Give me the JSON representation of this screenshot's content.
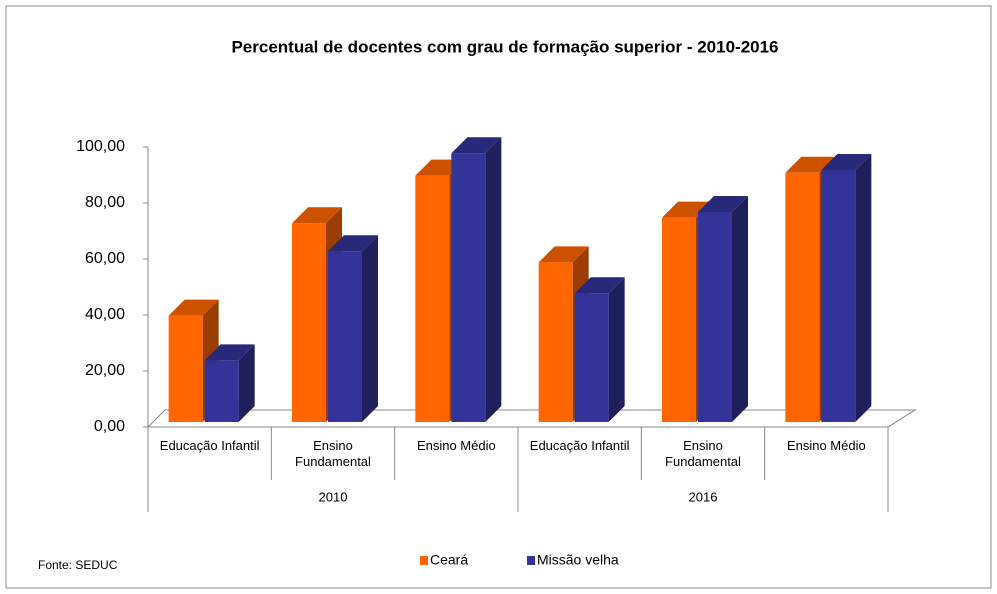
{
  "chart_data": {
    "type": "bar3d",
    "title": "Percentual de docentes com grau de formação superior - 2010-2016",
    "categories": [
      "Educação Infantil",
      "Ensino Fundamental",
      "Ensino Médio",
      "Educação Infantil",
      "Ensino Fundamental",
      "Ensino Médio"
    ],
    "groups": [
      {
        "name": "2010",
        "size": 3
      },
      {
        "name": "2016",
        "size": 3
      }
    ],
    "series": [
      {
        "name": "Ceará",
        "color": "#ff6600",
        "values": [
          38,
          71,
          88,
          57,
          73,
          89
        ]
      },
      {
        "name": "Missão velha",
        "color": "#333399",
        "values": [
          22,
          61,
          96,
          46,
          75,
          90
        ]
      }
    ],
    "ylim": [
      0,
      100
    ],
    "yticks": [
      {
        "value": 0,
        "label": "0,00"
      },
      {
        "value": 20,
        "label": "20,00"
      },
      {
        "value": 40,
        "label": "40,00"
      },
      {
        "value": 60,
        "label": "60,00"
      },
      {
        "value": 80,
        "label": "80,00"
      },
      {
        "value": 100,
        "label": "100,00"
      }
    ],
    "legend": "bottom",
    "source": "Fonte: SEDUC"
  }
}
